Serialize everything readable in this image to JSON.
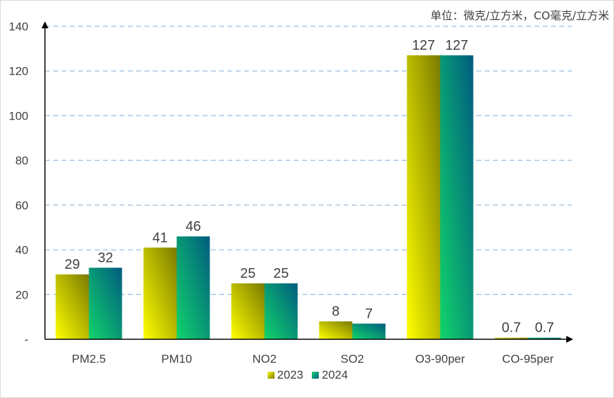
{
  "chart_data": {
    "type": "bar",
    "unit_note": "单位：微克/立方米，CO毫克/立方米",
    "categories": [
      "PM2.5",
      "PM10",
      "NO2",
      "SO2",
      "O3-90per",
      "CO-95per"
    ],
    "series": [
      {
        "name": "2023",
        "values": [
          29,
          41,
          25,
          8,
          127,
          0.7
        ],
        "labels": [
          "29",
          "41",
          "25",
          "8",
          "127",
          "0.7"
        ]
      },
      {
        "name": "2024",
        "values": [
          32,
          46,
          25,
          7,
          127,
          0.7
        ],
        "labels": [
          "32",
          "46",
          "25",
          "7",
          "127",
          "0.7"
        ]
      }
    ],
    "ylim": [
      0,
      140
    ],
    "yticks": [
      0,
      20,
      40,
      60,
      80,
      100,
      120,
      140
    ],
    "ytick_labels": [
      "-",
      "20",
      "40",
      "60",
      "80",
      "100",
      "120",
      "140"
    ],
    "grid": true,
    "legend_position": "bottom"
  }
}
